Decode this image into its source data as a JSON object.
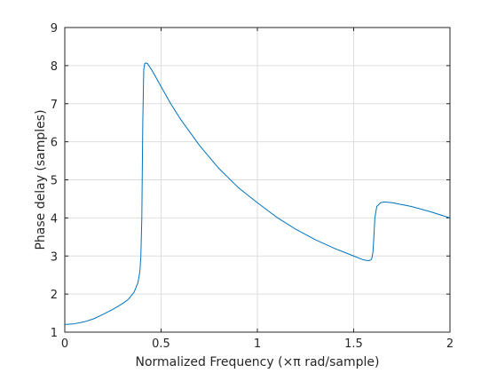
{
  "chart_data": {
    "type": "line",
    "title": "",
    "xlabel": "Normalized Frequency  (×π rad/sample)",
    "ylabel": "Phase delay (samples)",
    "xlim": [
      0,
      2
    ],
    "ylim": [
      1,
      9
    ],
    "xticks": [
      0,
      0.5,
      1,
      1.5,
      2
    ],
    "xtick_labels": [
      "0",
      "0.5",
      "1",
      "1.5",
      "2"
    ],
    "yticks": [
      1,
      2,
      3,
      4,
      5,
      6,
      7,
      8,
      9
    ],
    "ytick_labels": [
      "1",
      "2",
      "3",
      "4",
      "5",
      "6",
      "7",
      "8",
      "9"
    ],
    "grid": true,
    "legend": "none",
    "line_color": "#0072bd",
    "grid_color": "#dedede",
    "axis_color": "#262626",
    "series": [
      {
        "x": [
          0,
          0.05,
          0.1,
          0.15,
          0.2,
          0.25,
          0.3,
          0.33,
          0.36,
          0.38,
          0.39,
          0.395,
          0.4,
          0.402,
          0.405,
          0.41,
          0.415,
          0.42,
          0.43,
          0.45,
          0.5,
          0.55,
          0.6,
          0.7,
          0.8,
          0.9,
          1.0,
          1.1,
          1.2,
          1.3,
          1.4,
          1.5,
          1.55,
          1.57,
          1.58,
          1.59,
          1.595,
          1.6,
          1.605,
          1.61,
          1.62,
          1.64,
          1.66,
          1.7,
          1.8,
          1.9,
          2.0
        ],
        "y": [
          1.2,
          1.22,
          1.27,
          1.35,
          1.47,
          1.6,
          1.75,
          1.86,
          2.05,
          2.3,
          2.6,
          3.0,
          4.0,
          5.0,
          6.5,
          7.9,
          8.05,
          8.07,
          8.05,
          7.9,
          7.45,
          7.0,
          6.6,
          5.9,
          5.3,
          4.8,
          4.4,
          4.02,
          3.7,
          3.43,
          3.2,
          3.0,
          2.9,
          2.88,
          2.88,
          2.9,
          2.95,
          3.1,
          3.5,
          4.0,
          4.3,
          4.4,
          4.42,
          4.4,
          4.3,
          4.16,
          4.0
        ]
      }
    ]
  }
}
